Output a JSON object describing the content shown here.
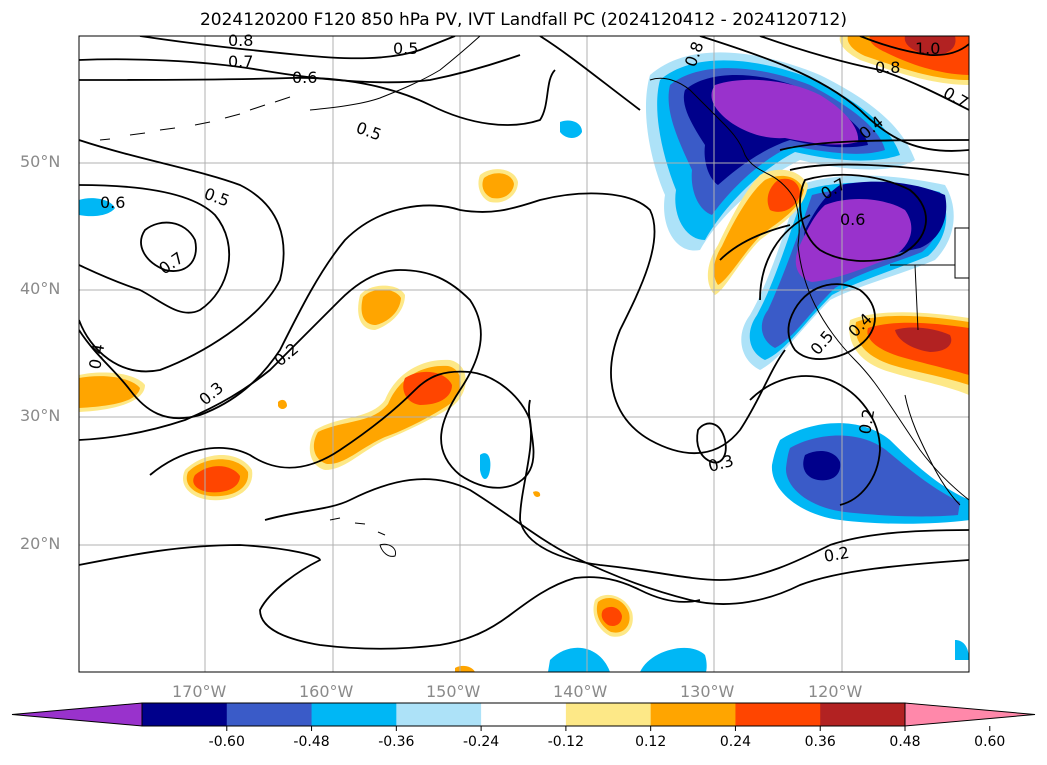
{
  "title": "2024120200 F120 850 hPa PV, IVT Landfall PC (2024120412 - 2024120712)",
  "map": {
    "lat_labels": [
      "50°N",
      "40°N",
      "30°N",
      "20°N"
    ],
    "lon_labels": [
      "170°W",
      "160°W",
      "150°W",
      "140°W",
      "130°W",
      "120°W"
    ],
    "contour_labels": [
      "0.8",
      "0.7",
      "0.6",
      "0.5",
      "0.5",
      "0.6",
      "0.5",
      "0.7",
      "0.4",
      "0.3",
      "0.2",
      "0.3",
      "0.2",
      "1.0",
      "0.8",
      "0.7",
      "0.4",
      "0.6",
      "0.7",
      "0.4",
      "0.5",
      "0.2",
      "0.8"
    ],
    "colors": {
      "grid": "#b0b0b0",
      "contour": "#000000",
      "coast": "#000000"
    }
  },
  "colorbar": {
    "tick_labels": [
      "-0.60",
      "-0.48",
      "-0.36",
      "-0.24",
      "-0.12",
      "0.12",
      "0.24",
      "0.36",
      "0.48",
      "0.60"
    ],
    "colors": [
      "#9932cc",
      "#00008b",
      "#3a5bc8",
      "#00b7f5",
      "#ade2f8",
      "#ffffff",
      "#fde887",
      "#ffa500",
      "#ff4500",
      "#b22222",
      "#ff88aa"
    ]
  }
}
